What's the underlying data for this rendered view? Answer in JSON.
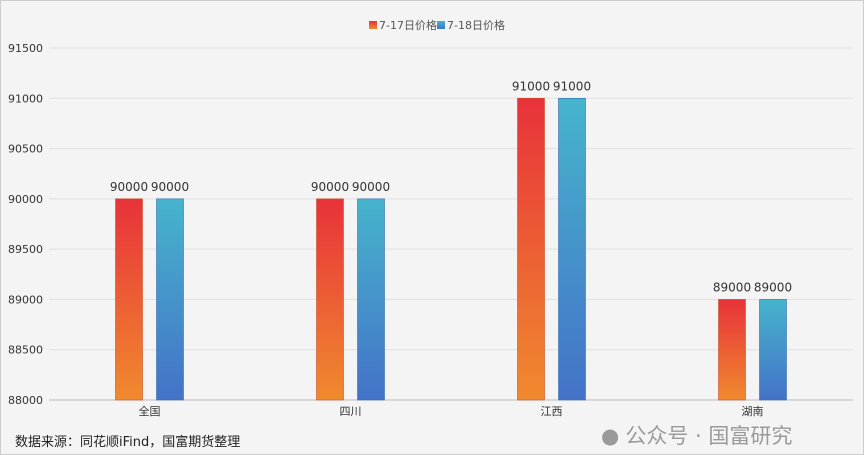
{
  "chart_data": {
    "type": "bar",
    "categories": [
      "全国",
      "四川",
      "江西",
      "湖南"
    ],
    "series": [
      {
        "name": "7-17日价格",
        "values": [
          90000,
          90000,
          91000,
          89000
        ],
        "color_top": "#e8323a",
        "color_bottom": "#f08a2e"
      },
      {
        "name": "7-18日价格",
        "values": [
          90000,
          90000,
          91000,
          89000
        ],
        "color_top": "#46b4cc",
        "color_bottom": "#4472c8"
      }
    ],
    "ylim": [
      88000,
      91500
    ],
    "yticks": [
      88000,
      88500,
      89000,
      89500,
      90000,
      90500,
      91000,
      91500
    ],
    "grid": true,
    "legend": "top-center"
  },
  "source": "数据来源：同花顺iFind，国富期货整理",
  "watermark": "公众号 · 国富研究"
}
